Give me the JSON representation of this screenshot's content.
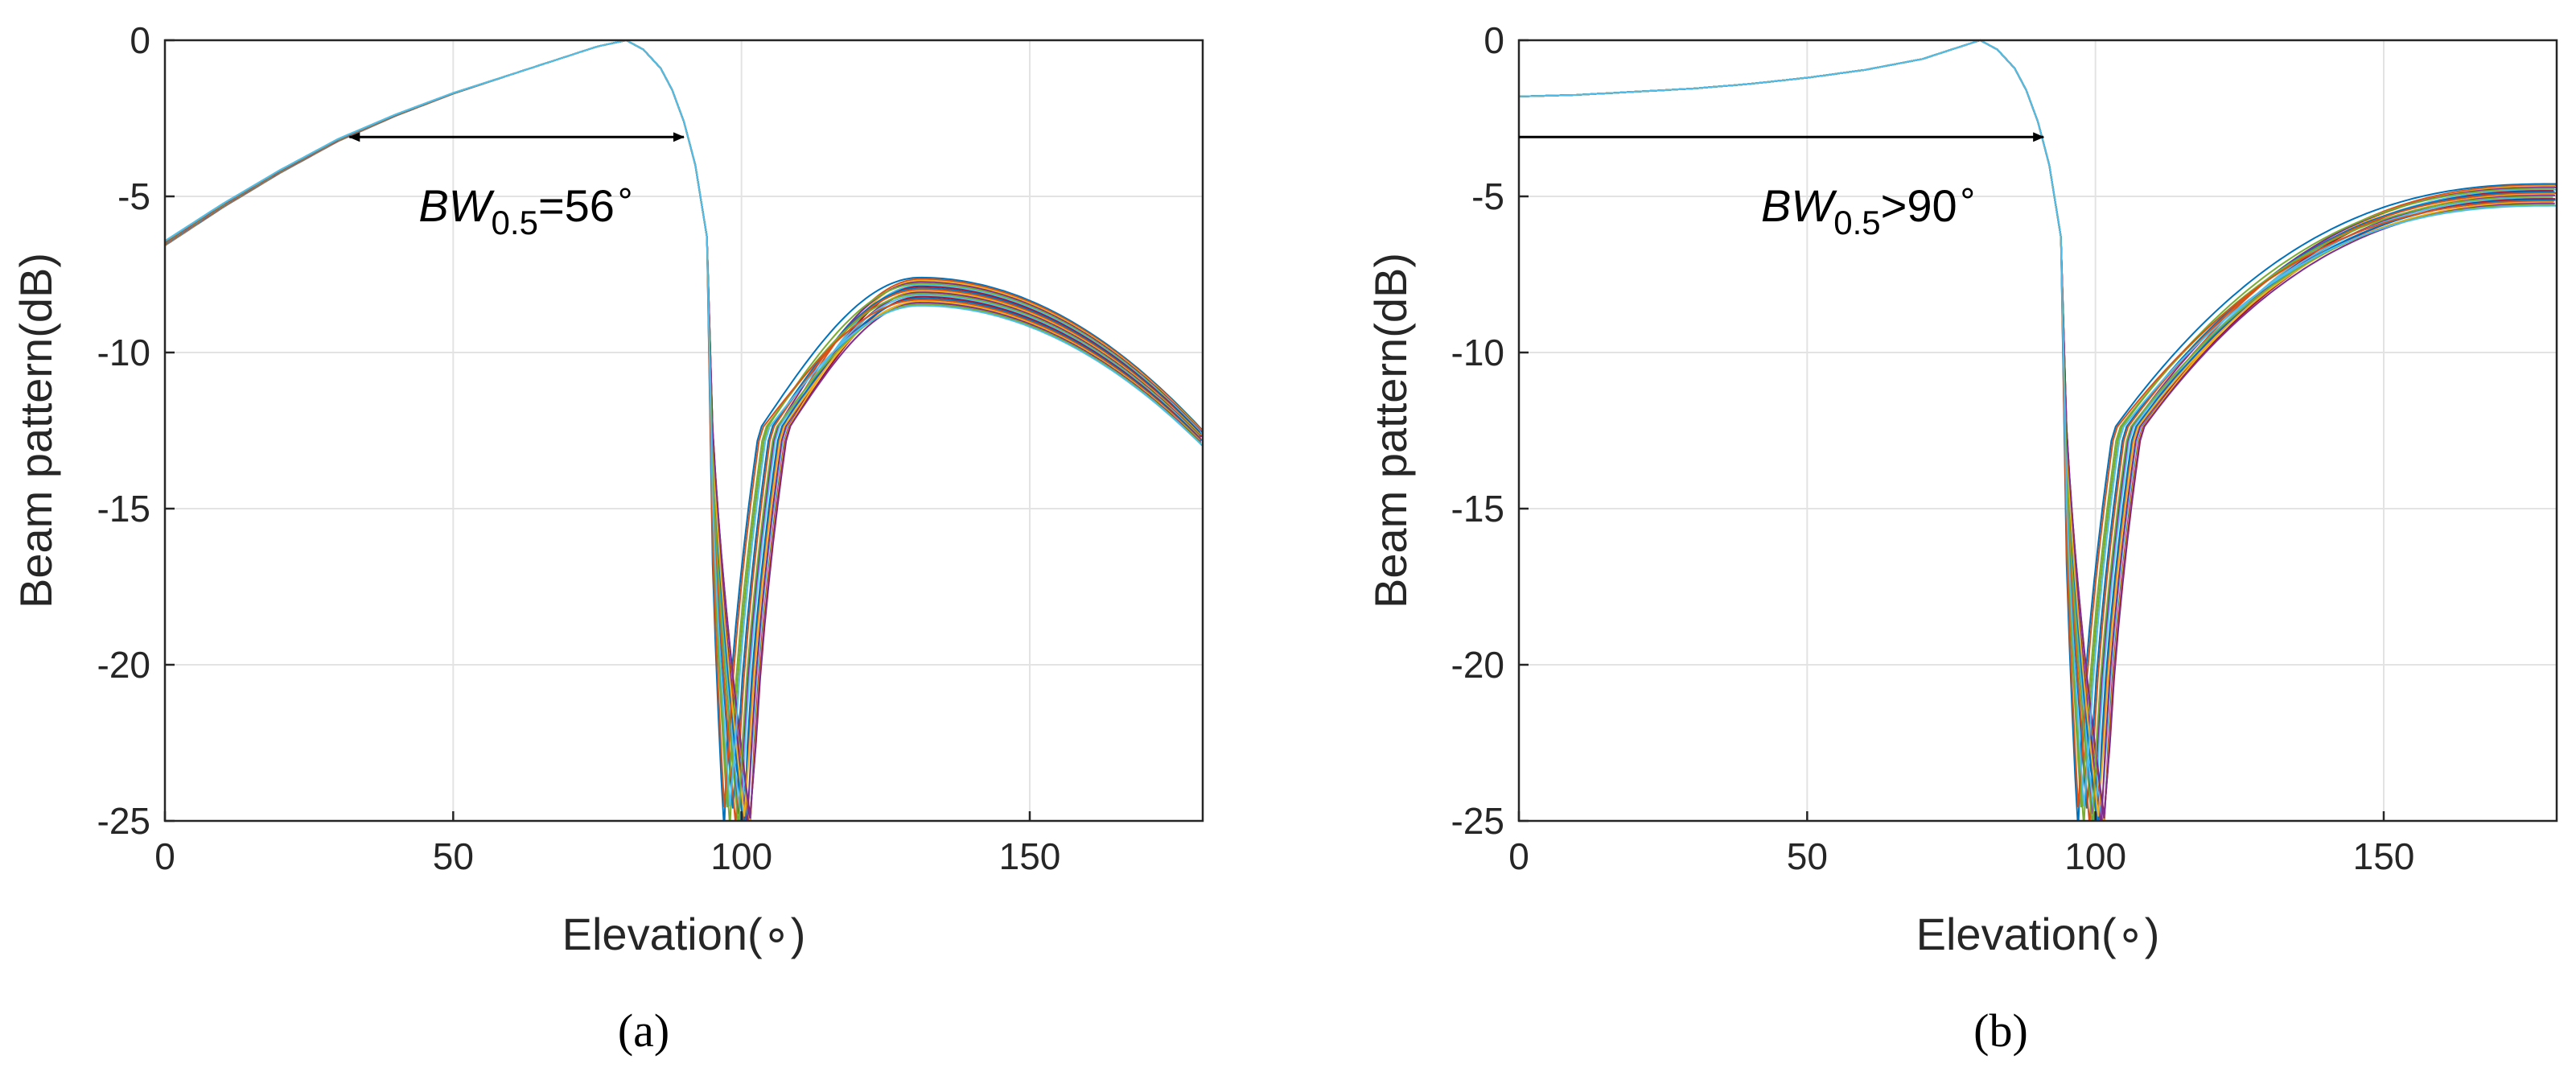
{
  "chart_data": [
    {
      "type": "line",
      "title": "",
      "caption": "(a)",
      "xlabel": "Elevation(∘)",
      "ylabel": "Beam pattern(dB)",
      "xlim": [
        0,
        180
      ],
      "ylim": [
        -25,
        0
      ],
      "xticks": [
        0,
        50,
        100,
        150
      ],
      "yticks": [
        0,
        -5,
        -10,
        -15,
        -20,
        -25
      ],
      "xtick_labels": [
        "0",
        "50",
        "100",
        "150"
      ],
      "ytick_labels": [
        "0",
        "-5",
        "-10",
        "-15",
        "-20",
        "-25"
      ],
      "grid": true,
      "series_count": 20,
      "peak": [
        80,
        0
      ],
      "main_curve": {
        "x": [
          0,
          10,
          20,
          30,
          40,
          50,
          60,
          70,
          75,
          80,
          83,
          86,
          88,
          90,
          92,
          94
        ],
        "y": [
          -6.5,
          -5.3,
          -4.2,
          -3.2,
          -2.4,
          -1.7,
          -1.1,
          -0.5,
          -0.2,
          0,
          -0.3,
          -0.9,
          -1.6,
          -2.6,
          -4.0,
          -6.3
        ]
      },
      "nulls_x_range": [
        93,
        110
      ],
      "sidelobe_peak": [
        131,
        -8
      ],
      "sidelobe_end_at_180": [
        -12.5,
        -13
      ],
      "annotation": {
        "main": "BW",
        "sub": "0.5",
        "suffix": "=56",
        "degree": "∘"
      },
      "arrow": {
        "type": "double",
        "x": [
          32,
          90
        ],
        "y": -3.1
      }
    },
    {
      "type": "line",
      "title": "",
      "caption": "(b)",
      "xlabel": "Elevation(∘)",
      "ylabel": "Beam pattern(dB)",
      "xlim": [
        0,
        180
      ],
      "ylim": [
        -25,
        0
      ],
      "xticks": [
        0,
        50,
        100,
        150
      ],
      "yticks": [
        0,
        -5,
        -10,
        -15,
        -20,
        -25
      ],
      "xtick_labels": [
        "0",
        "50",
        "100",
        "150"
      ],
      "ytick_labels": [
        "0",
        "-5",
        "-10",
        "-15",
        "-20",
        "-25"
      ],
      "grid": true,
      "series_count": 20,
      "peak": [
        80,
        0
      ],
      "main_curve": {
        "x": [
          0,
          10,
          20,
          30,
          40,
          50,
          60,
          70,
          75,
          80,
          83,
          86,
          88,
          90,
          92,
          94
        ],
        "y": [
          -1.8,
          -1.75,
          -1.65,
          -1.55,
          -1.4,
          -1.2,
          -0.95,
          -0.6,
          -0.3,
          0,
          -0.3,
          -0.9,
          -1.6,
          -2.6,
          -4.0,
          -6.3
        ]
      },
      "nulls_x_range": [
        93,
        110
      ],
      "sidelobe_end_at_180": [
        -4.7,
        -5.3
      ],
      "annotation": {
        "main": "BW",
        "sub": "0.5",
        "suffix": ">90",
        "degree": "∘"
      },
      "arrow": {
        "type": "single",
        "x": [
          0,
          91
        ],
        "y": -3.1
      }
    }
  ],
  "colors": [
    "#0072BD",
    "#D95319",
    "#EDB120",
    "#7E2F8E",
    "#77AC30",
    "#4DBEEE",
    "#A2142F"
  ]
}
